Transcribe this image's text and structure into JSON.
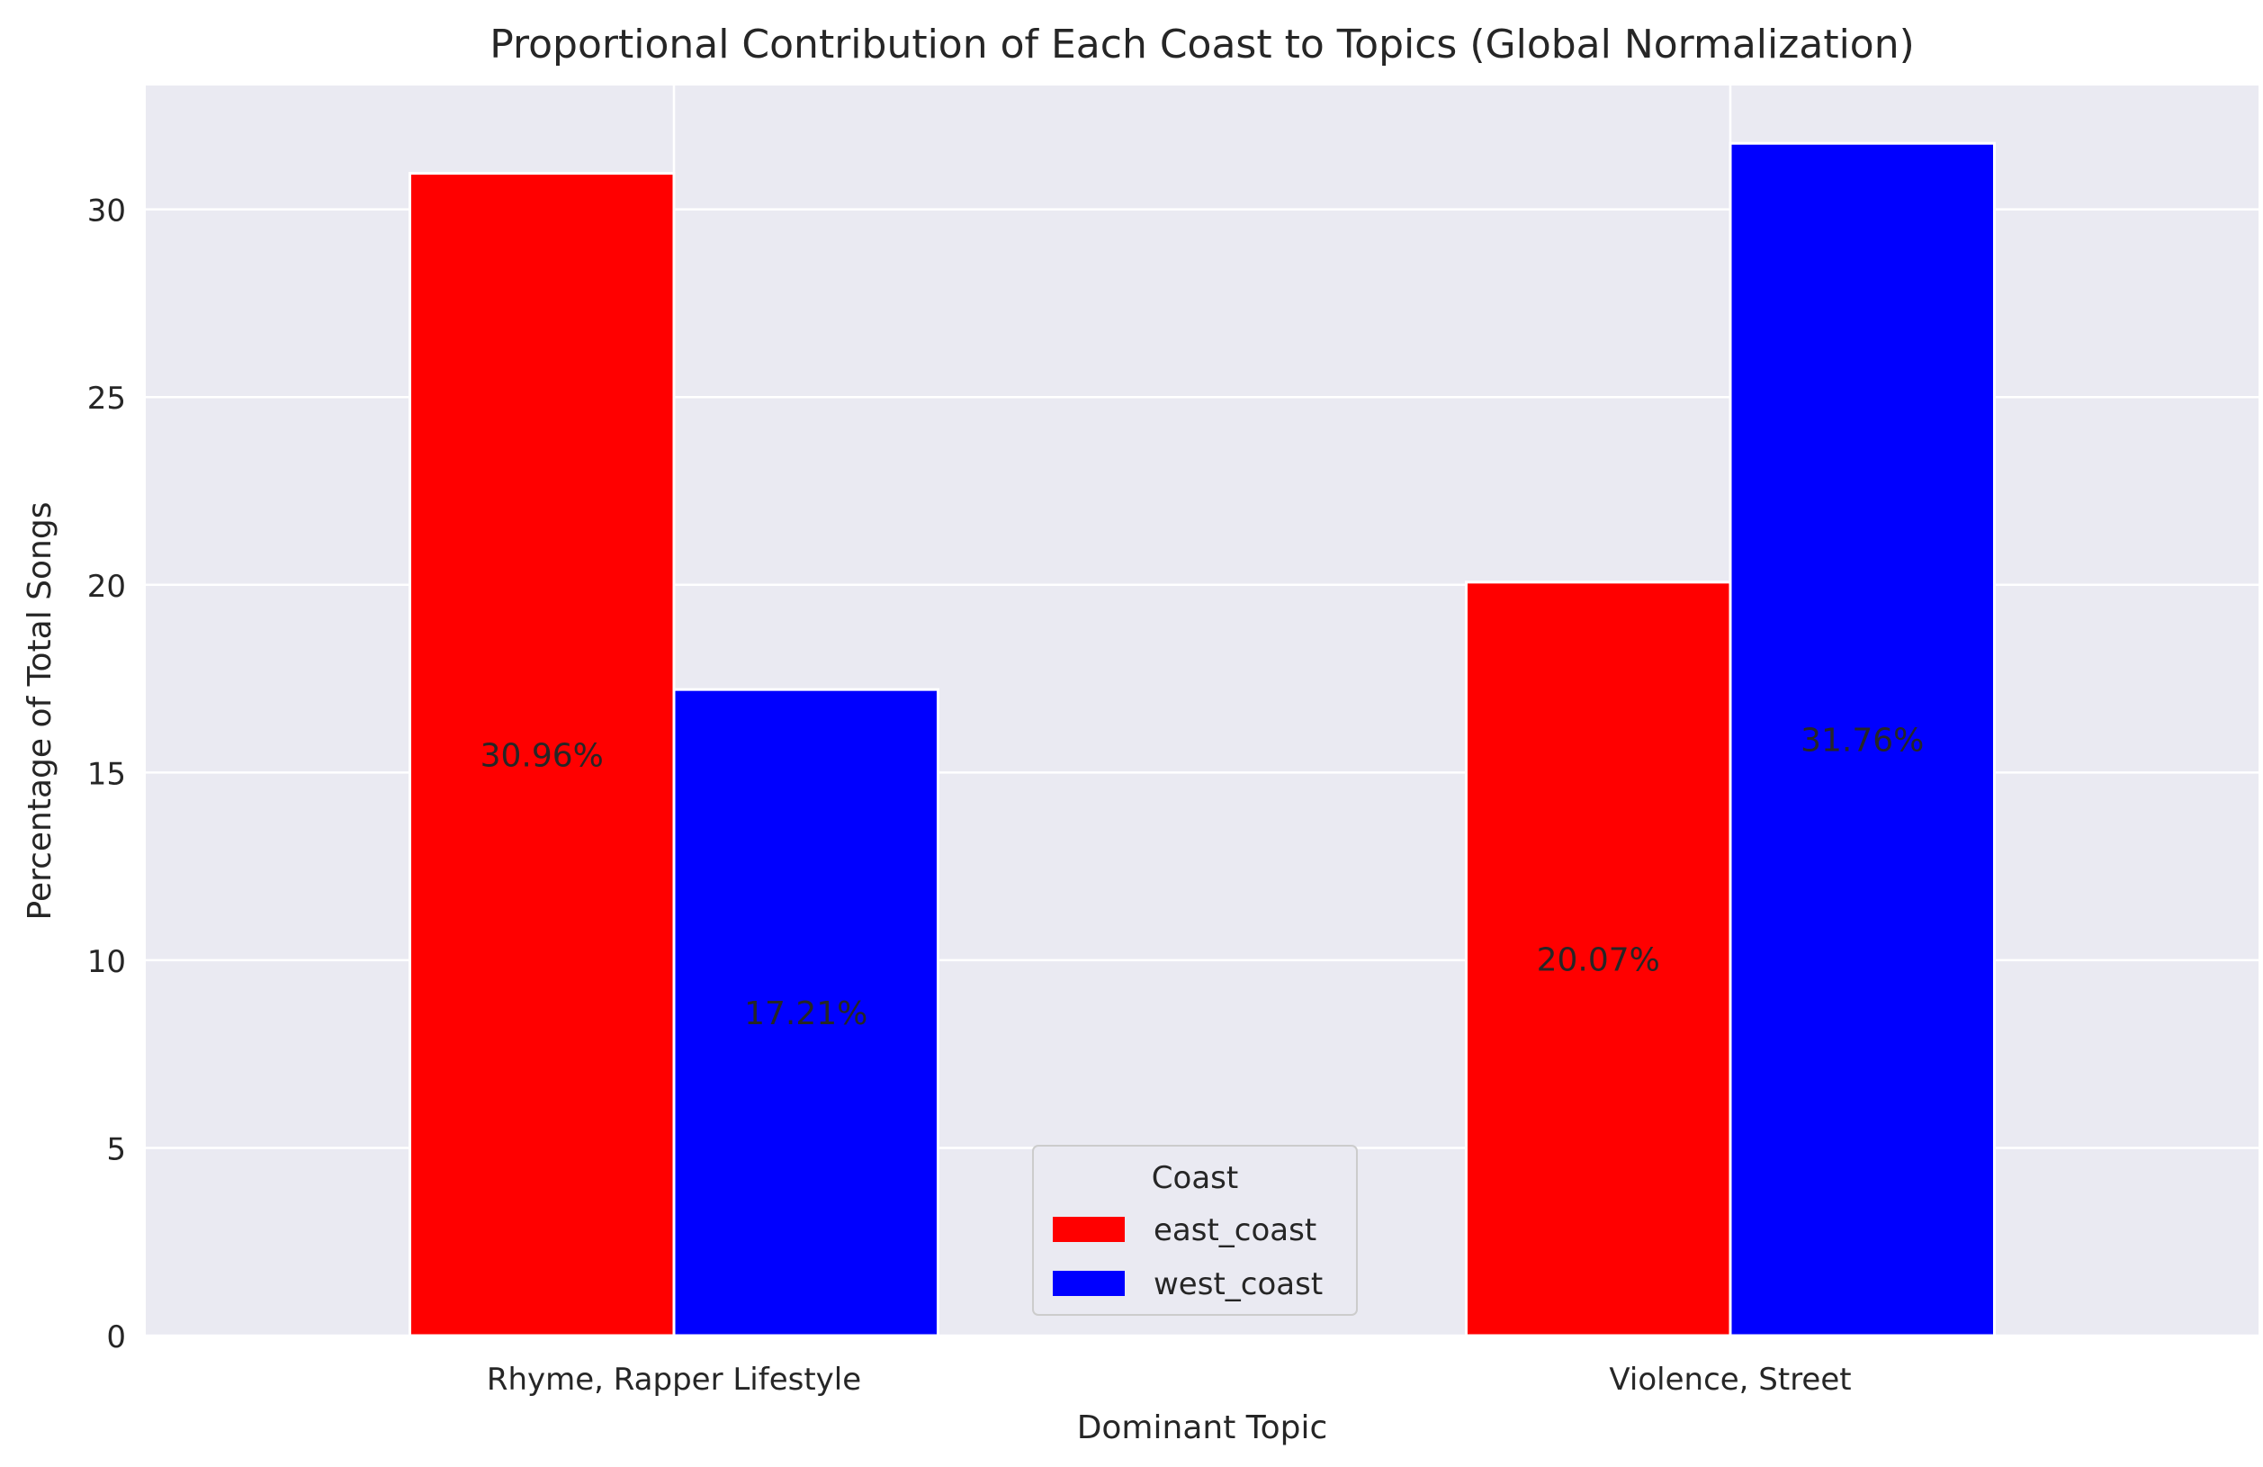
{
  "chart_data": {
    "type": "bar",
    "title": "Proportional Contribution of Each Coast to Topics (Global Normalization)",
    "xlabel": "Dominant Topic",
    "ylabel": "Percentage of Total Songs",
    "categories": [
      "Rhyme, Rapper Lifestyle",
      "Violence, Street"
    ],
    "series": [
      {
        "name": "east_coast",
        "color": "#ff0000",
        "values": [
          30.96,
          20.07
        ],
        "labels": [
          "30.96%",
          "20.07%"
        ]
      },
      {
        "name": "west_coast",
        "color": "#0000ff",
        "values": [
          17.21,
          31.76
        ],
        "labels": [
          "17.21%",
          "31.76%"
        ]
      }
    ],
    "ylim": [
      0,
      33.3
    ],
    "yticks": [
      0,
      5,
      10,
      15,
      20,
      25,
      30
    ],
    "grid": true,
    "legend": {
      "title": "Coast",
      "placement": "lower-center"
    },
    "background_color": "#eaeaf2"
  }
}
